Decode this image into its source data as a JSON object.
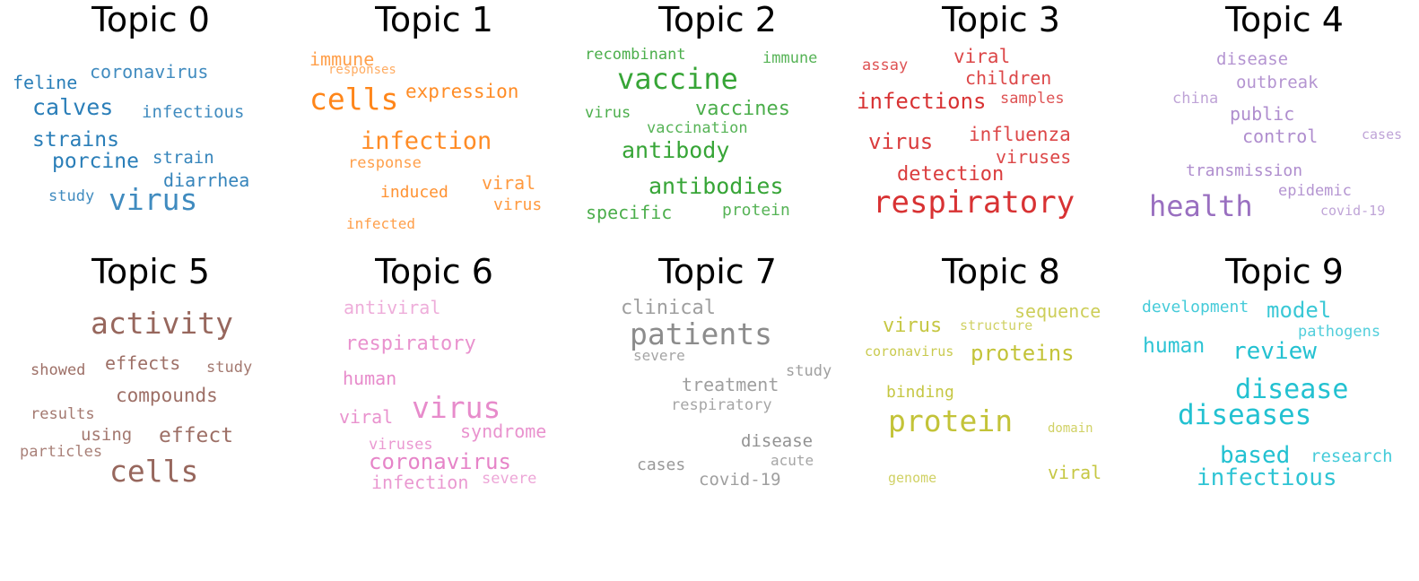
{
  "chart_data": {
    "type": "wordcloud-grid",
    "panels": [
      {
        "title": "Topic 0",
        "color": "#1f77b4",
        "words": [
          "feline",
          "coronavirus",
          "calves",
          "infectious",
          "strains",
          "porcine",
          "strain",
          "diarrhea",
          "study",
          "virus"
        ]
      },
      {
        "title": "Topic 1",
        "color": "#ff7f0e",
        "words": [
          "immune",
          "responses",
          "cells",
          "expression",
          "infection",
          "response",
          "induced",
          "viral",
          "virus",
          "infected"
        ]
      },
      {
        "title": "Topic 2",
        "color": "#2ca02c",
        "words": [
          "recombinant",
          "immune",
          "vaccine",
          "virus",
          "vaccines",
          "vaccination",
          "antibody",
          "antibodies",
          "specific",
          "protein"
        ]
      },
      {
        "title": "Topic 3",
        "color": "#d62728",
        "words": [
          "assay",
          "viral",
          "children",
          "infections",
          "samples",
          "virus",
          "influenza",
          "viruses",
          "detection",
          "respiratory"
        ]
      },
      {
        "title": "Topic 4",
        "color": "#9467bd",
        "words": [
          "disease",
          "outbreak",
          "china",
          "public",
          "control",
          "cases",
          "transmission",
          "epidemic",
          "health",
          "covid-19"
        ]
      },
      {
        "title": "Topic 5",
        "color": "#8c564b",
        "words": [
          "activity",
          "showed",
          "effects",
          "study",
          "compounds",
          "results",
          "using",
          "effect",
          "particles",
          "cells"
        ]
      },
      {
        "title": "Topic 6",
        "color": "#e377c2",
        "words": [
          "antiviral",
          "respiratory",
          "human",
          "viral",
          "virus",
          "syndrome",
          "viruses",
          "coronavirus",
          "infection",
          "severe"
        ]
      },
      {
        "title": "Topic 7",
        "color": "#7f7f7f",
        "words": [
          "clinical",
          "patients",
          "severe",
          "study",
          "treatment",
          "respiratory",
          "disease",
          "acute",
          "cases",
          "covid-19"
        ]
      },
      {
        "title": "Topic 8",
        "color": "#bcbd22",
        "words": [
          "sequence",
          "virus",
          "structure",
          "coronavirus",
          "proteins",
          "binding",
          "protein",
          "domain",
          "genome",
          "viral"
        ]
      },
      {
        "title": "Topic 9",
        "color": "#17becf",
        "words": [
          "development",
          "model",
          "pathogens",
          "human",
          "review",
          "disease",
          "diseases",
          "based",
          "research",
          "infectious"
        ]
      }
    ]
  }
}
